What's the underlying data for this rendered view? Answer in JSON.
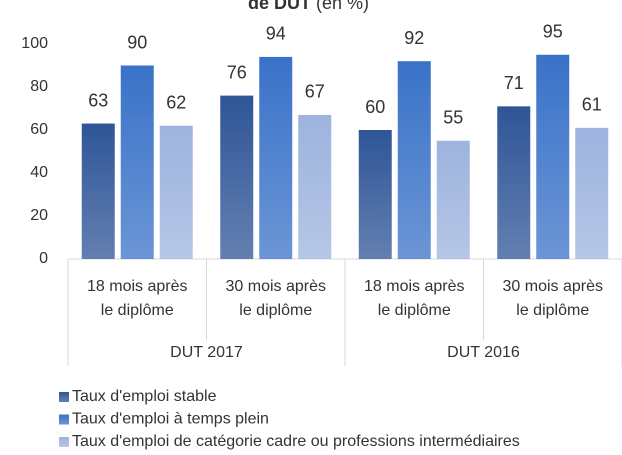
{
  "chart_data": {
    "type": "bar",
    "title": "de DUT",
    "subtitle": "(en %)",
    "categories": [
      [
        "18 mois après",
        "le diplôme"
      ],
      [
        "30 mois après",
        "le diplôme"
      ],
      [
        "18 mois après",
        "le diplôme"
      ],
      [
        "30 mois après",
        "le diplôme"
      ]
    ],
    "groups": [
      "DUT 2017",
      "DUT 2016"
    ],
    "series": [
      {
        "name": "Taux d'emploi stable",
        "color": "#2f5597",
        "values": [
          63,
          76,
          60,
          71
        ]
      },
      {
        "name": "Taux d'emploi à temps plein",
        "color": "#3a72c8",
        "values": [
          90,
          94,
          92,
          95
        ]
      },
      {
        "name": "Taux d'emploi de catégorie cadre ou professions intermédiaires",
        "color": "#9db3de",
        "values": [
          62,
          67,
          55,
          61
        ]
      }
    ],
    "ylim": [
      0,
      100
    ],
    "yticks": [
      0,
      20,
      40,
      60,
      80,
      100
    ],
    "grid": false,
    "legend": "bottom"
  }
}
